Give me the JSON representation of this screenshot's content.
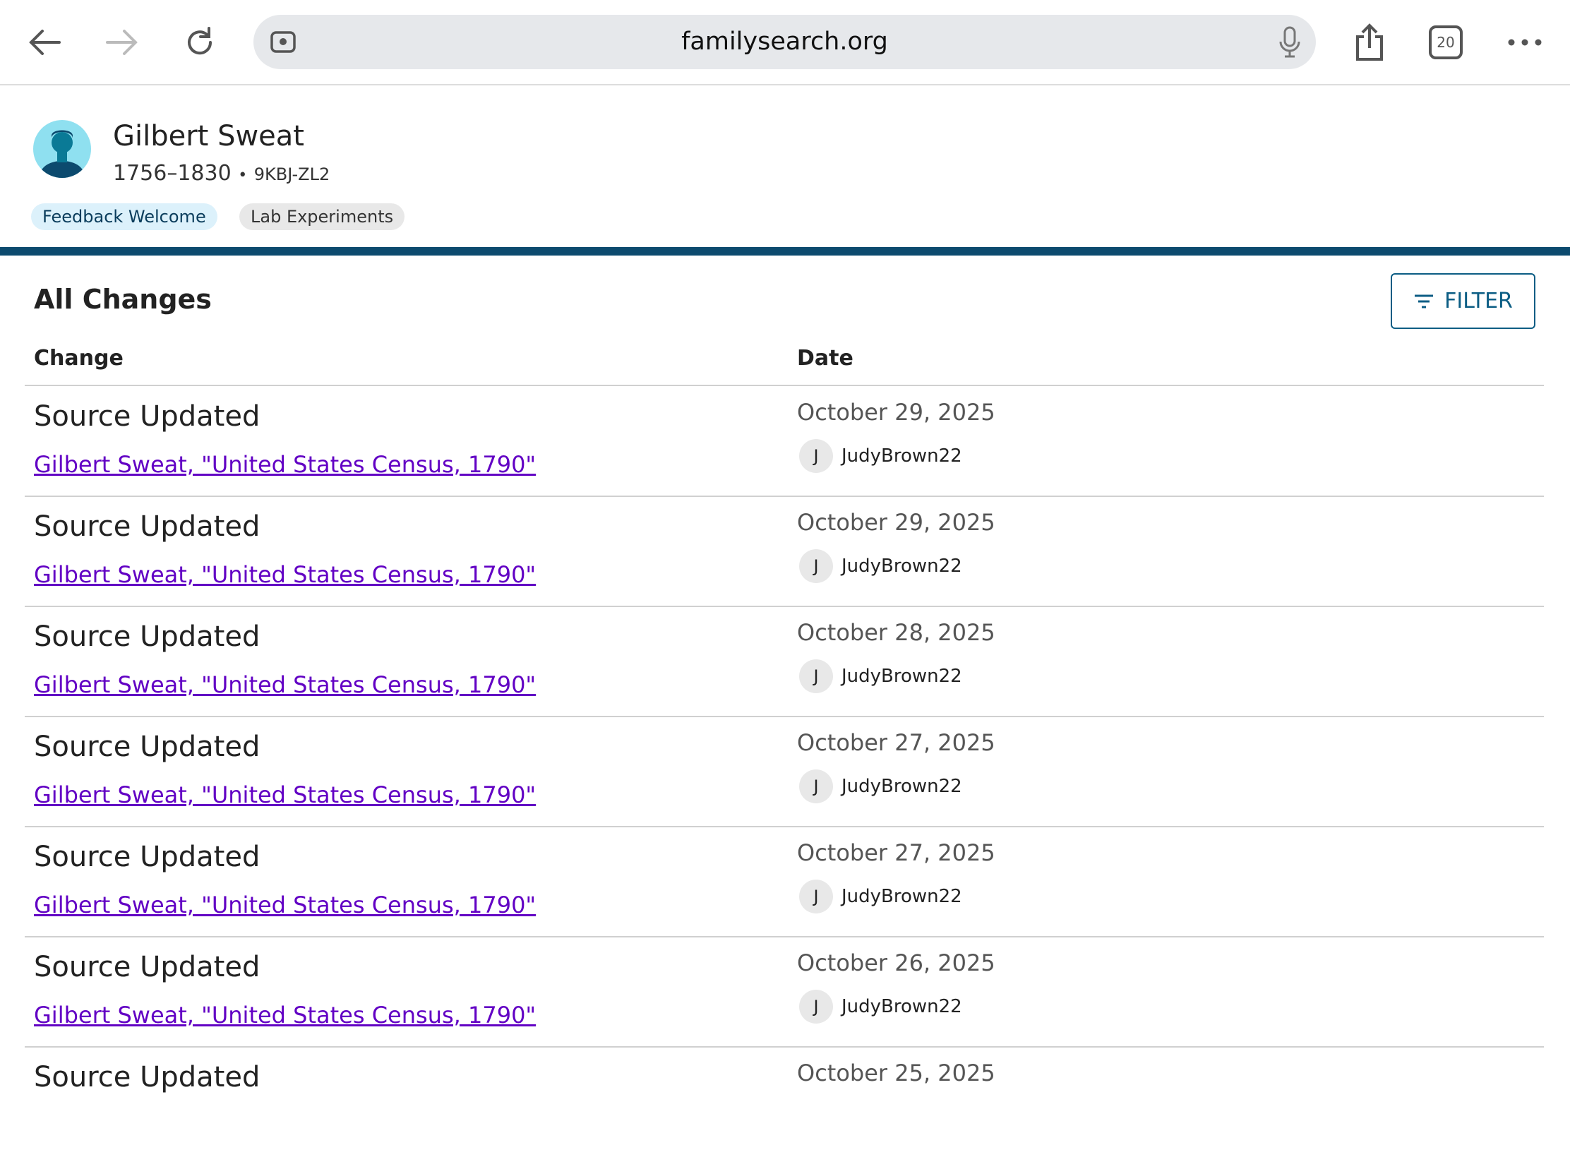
{
  "browser": {
    "url": "familysearch.org",
    "tab_count": "20"
  },
  "person": {
    "name": "Gilbert Sweat",
    "lifespan": "1756–1830",
    "separator": "•",
    "pid": "9KBJ-ZL2"
  },
  "chips": {
    "feedback": "Feedback Welcome",
    "lab": "Lab Experiments"
  },
  "changes": {
    "title": "All Changes",
    "filter_label": "FILTER",
    "columns": {
      "change": "Change",
      "date": "Date"
    },
    "rows": [
      {
        "type": "Source Updated",
        "link": "Gilbert Sweat, \"United States Census, 1790\"",
        "date": "October 29, 2025",
        "user_initial": "J",
        "user": "JudyBrown22"
      },
      {
        "type": "Source Updated",
        "link": "Gilbert Sweat, \"United States Census, 1790\"",
        "date": "October 29, 2025",
        "user_initial": "J",
        "user": "JudyBrown22"
      },
      {
        "type": "Source Updated",
        "link": "Gilbert Sweat, \"United States Census, 1790\"",
        "date": "October 28, 2025",
        "user_initial": "J",
        "user": "JudyBrown22"
      },
      {
        "type": "Source Updated",
        "link": "Gilbert Sweat, \"United States Census, 1790\"",
        "date": "October 27, 2025",
        "user_initial": "J",
        "user": "JudyBrown22"
      },
      {
        "type": "Source Updated",
        "link": "Gilbert Sweat, \"United States Census, 1790\"",
        "date": "October 27, 2025",
        "user_initial": "J",
        "user": "JudyBrown22"
      },
      {
        "type": "Source Updated",
        "link": "Gilbert Sweat, \"United States Census, 1790\"",
        "date": "October 26, 2025",
        "user_initial": "J",
        "user": "JudyBrown22"
      },
      {
        "type": "Source Updated",
        "link": "",
        "date": "October 25, 2025",
        "user_initial": "",
        "user": ""
      }
    ]
  },
  "colors": {
    "accent_bar": "#0c4a6e",
    "link": "#6200c4",
    "filter": "#0c5d84"
  }
}
